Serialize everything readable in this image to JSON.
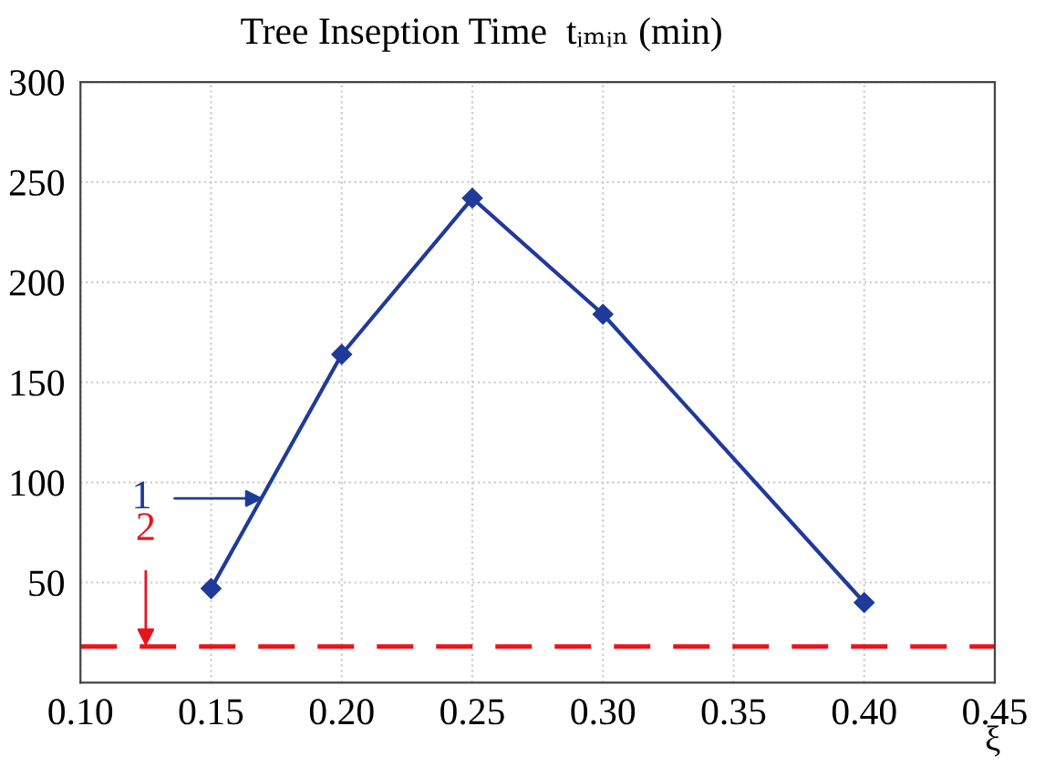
{
  "chart_data": {
    "type": "line",
    "ylabel": "Tree Inseption Time  tᵢₘᵢₙ (min)",
    "xlabel": "ξ",
    "x": [
      0.15,
      0.2,
      0.25,
      0.3,
      0.4
    ],
    "series": [
      {
        "color": "#1f3a9a",
        "values": [
          47,
          164,
          242,
          184,
          40
        ]
      }
    ],
    "marker": "diamond",
    "line_style": "solid",
    "xlim": [
      0.1,
      0.45
    ],
    "xticks": [
      {
        "value": 0.1,
        "label": "0.10"
      },
      0.15,
      {
        "value": 0.2,
        "label": "0.20"
      },
      0.25,
      {
        "value": 0.3,
        "label": "0.30"
      },
      0.35,
      {
        "value": 0.4,
        "label": "0.40"
      },
      0.45
    ],
    "ylim": [
      0,
      300
    ],
    "yticks": [
      50,
      100,
      150,
      200,
      250,
      300
    ],
    "grid": true,
    "ref_lines": [
      {
        "axis": "y",
        "value": 18,
        "color": "#e8141e",
        "line_style": "dashed"
      }
    ],
    "annotations": [
      {
        "text": "1",
        "x": 0.17,
        "y": 92
      },
      {
        "text": "2",
        "x": 0.125,
        "y": 18
      }
    ]
  }
}
